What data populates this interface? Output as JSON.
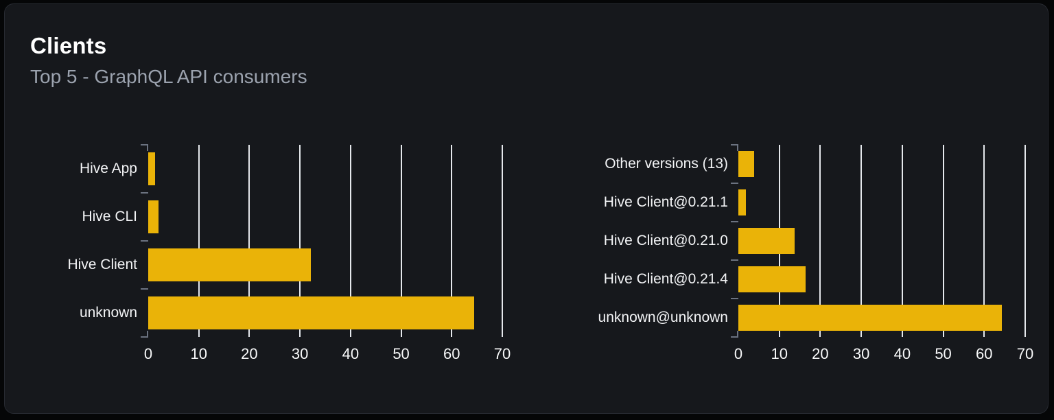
{
  "card": {
    "title": "Clients",
    "subtitle": "Top 5 - GraphQL API consumers"
  },
  "colors": {
    "bar": "#eab308",
    "card_bg": "#16181c",
    "card_border": "#272a31",
    "page_bg": "#050607",
    "gridline": "#e5e8ec",
    "axis_tick": "#6b7280",
    "category_label": "#f3f4f6",
    "tick_label": "#f9fafb",
    "subtitle": "#9ca3af",
    "title": "#ffffff"
  },
  "chart_data": [
    {
      "type": "bar",
      "name": "clients",
      "orientation": "horizontal",
      "categories": [
        "Hive App",
        "Hive CLI",
        "Hive Client",
        "unknown"
      ],
      "values": [
        1.4,
        2,
        32.2,
        64.4
      ],
      "x_ticks": [
        0,
        10,
        20,
        30,
        40,
        50,
        60,
        70
      ],
      "xlim": [
        0,
        70
      ],
      "xlabel": "",
      "ylabel": "",
      "grid": true,
      "legend": "none",
      "bar_color": "#eab308"
    },
    {
      "type": "bar",
      "name": "client-versions",
      "orientation": "horizontal",
      "categories": [
        "Other versions (13)",
        "Hive Client@0.21.1",
        "Hive Client@0.21.0",
        "Hive Client@0.21.4",
        "unknown@unknown"
      ],
      "values": [
        3.9,
        1.8,
        13.7,
        16.4,
        64.3
      ],
      "x_ticks": [
        0,
        10,
        20,
        30,
        40,
        50,
        60,
        70
      ],
      "xlim": [
        0,
        70
      ],
      "xlabel": "",
      "ylabel": "",
      "grid": true,
      "legend": "none",
      "bar_color": "#eab308"
    }
  ]
}
